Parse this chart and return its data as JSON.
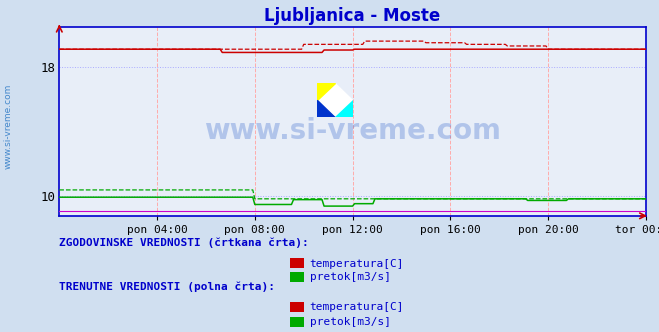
{
  "title": "Ljubljanica - Moste",
  "title_color": "#0000cc",
  "bg_color": "#d0dff0",
  "plot_bg_color": "#e8eef8",
  "yticks": [
    10,
    18
  ],
  "ylim": [
    8.8,
    20.5
  ],
  "xlim": [
    0,
    288
  ],
  "xtick_labels": [
    "pon 04:00",
    "pon 08:00",
    "pon 12:00",
    "pon 16:00",
    "pon 20:00",
    "tor 00:00"
  ],
  "xtick_positions": [
    48,
    96,
    144,
    192,
    240,
    288
  ],
  "watermark": "www.si-vreme.com",
  "watermark_color": "#3366cc",
  "sidebar_text": "www.si-vreme.com",
  "sidebar_color": "#4488cc",
  "legend_hist_label1": "temperatura[C]",
  "legend_hist_label2": "pretok[m3/s]",
  "legend_curr_label1": "temperatura[C]",
  "legend_curr_label2": "pretok[m3/s]",
  "red_color": "#cc0000",
  "green_color": "#00aa00",
  "blue_axis_color": "#0000cc",
  "purple_line_color": "#cc00cc",
  "temp_base": 19.1,
  "flow_hist_high": 10.4,
  "flow_hist_low": 9.85,
  "flow_curr_base": 9.9,
  "purple_y": 9.1
}
